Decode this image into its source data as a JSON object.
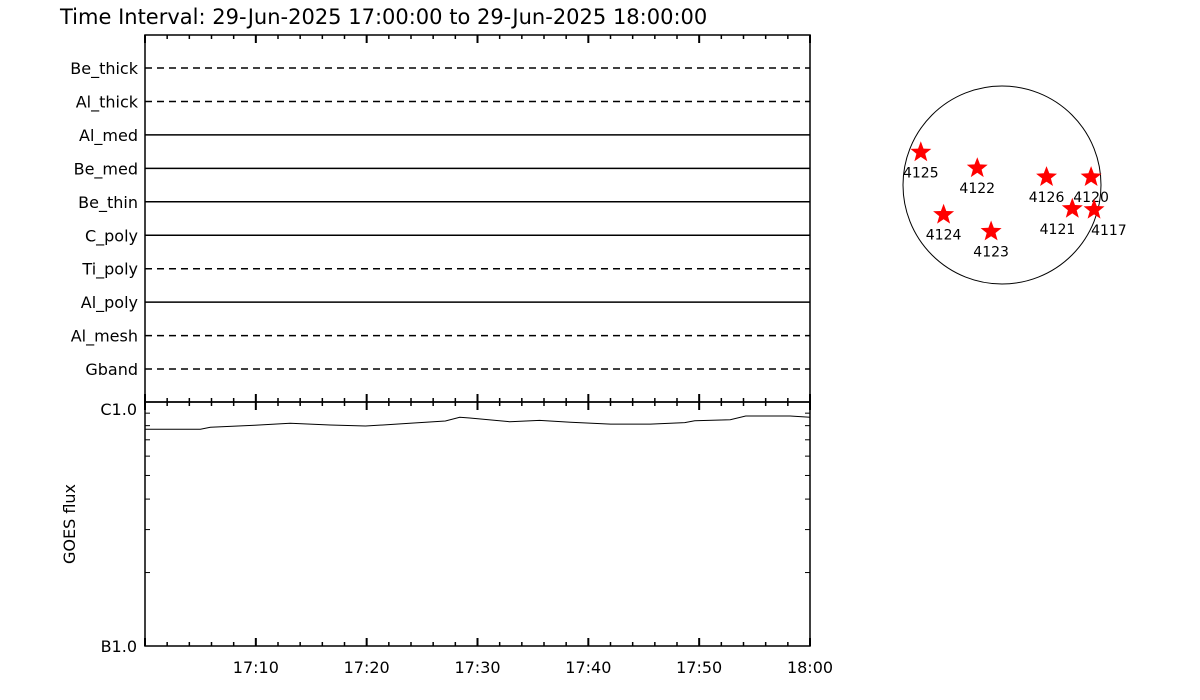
{
  "title": "Time Interval: 29-Jun-2025 17:00:00 to 29-Jun-2025 18:00:00",
  "colors": {
    "axes": "#000000",
    "star": "#ff0000",
    "background": "#ffffff"
  },
  "chart_data": [
    {
      "type": "timeline",
      "xlim": [
        "17:00",
        "18:00"
      ],
      "rows": [
        {
          "label": "Be_thick",
          "style": "dashed"
        },
        {
          "label": "Al_thick",
          "style": "dashed"
        },
        {
          "label": "Al_med",
          "style": "solid"
        },
        {
          "label": "Be_med",
          "style": "solid"
        },
        {
          "label": "Be_thin",
          "style": "solid"
        },
        {
          "label": "C_poly",
          "style": "solid"
        },
        {
          "label": "Ti_poly",
          "style": "dashed"
        },
        {
          "label": "Al_poly",
          "style": "solid"
        },
        {
          "label": "Al_mesh",
          "style": "dashed"
        },
        {
          "label": "Gband",
          "style": "dashed"
        }
      ]
    },
    {
      "type": "line",
      "ylabel": "GOES flux",
      "yscale": "log",
      "ylim": [
        1e-07,
        1e-06
      ],
      "ytick_labels": [
        "B1.0",
        "C1.0"
      ],
      "xlim_minutes_after_17": [
        0,
        60
      ],
      "xtick_labels": [
        "17:10",
        "17:20",
        "17:30",
        "17:40",
        "17:50",
        "18:00"
      ],
      "series": [
        {
          "x": [
            0,
            5,
            5.9,
            9.9,
            13.1,
            16.7,
            19.9,
            23.9,
            27.1,
            28.4,
            29.3,
            32.9,
            35.6,
            38.4,
            42,
            45.6,
            48.7,
            49.6,
            52.8,
            54.2,
            58.2,
            60
          ],
          "y": [
            7.73e-07,
            7.73e-07,
            7.88e-07,
            8.03e-07,
            8.18e-07,
            8.05e-07,
            7.97e-07,
            8.18e-07,
            8.36e-07,
            8.66e-07,
            8.6e-07,
            8.3e-07,
            8.41e-07,
            8.26e-07,
            8.12e-07,
            8.12e-07,
            8.23e-07,
            8.38e-07,
            8.46e-07,
            8.76e-07,
            8.76e-07,
            8.66e-07
          ]
        }
      ]
    },
    {
      "type": "scatter",
      "description_units": "solar radii from disk center",
      "points": [
        {
          "label": "4125",
          "x": -0.82,
          "y": 0.33
        },
        {
          "label": "4122",
          "x": -0.25,
          "y": 0.17
        },
        {
          "label": "4126",
          "x": 0.45,
          "y": 0.08
        },
        {
          "label": "4120",
          "x": 0.9,
          "y": 0.08
        },
        {
          "label": "4121",
          "x": 0.71,
          "y": -0.24
        },
        {
          "label": "4117",
          "x": 0.93,
          "y": -0.25
        },
        {
          "label": "4124",
          "x": -0.59,
          "y": -0.3
        },
        {
          "label": "4123",
          "x": -0.11,
          "y": -0.47
        }
      ]
    }
  ]
}
